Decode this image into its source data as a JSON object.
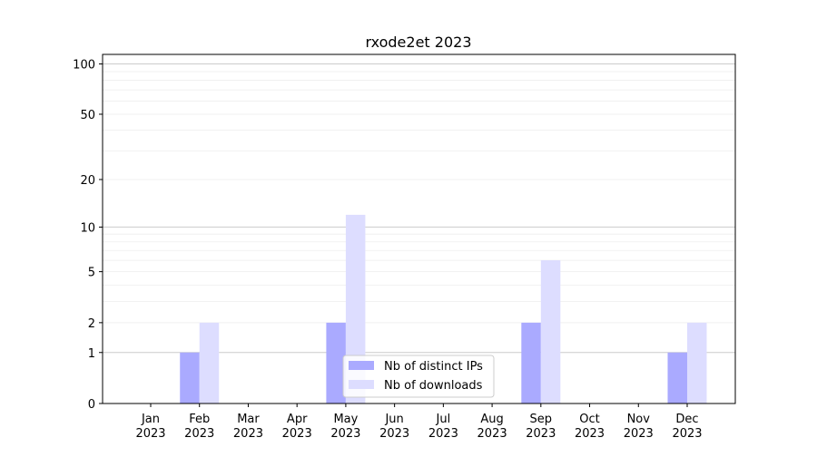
{
  "chart_data": {
    "type": "bar",
    "title": "rxode2et 2023",
    "xlabel": "",
    "ylabel": "",
    "yscale": "symlog",
    "ylim": [
      0,
      114
    ],
    "yticks": [
      0,
      1,
      2,
      5,
      10,
      20,
      50,
      100
    ],
    "grid": true,
    "legend_placement": "bottom-center",
    "categories": [
      "Jan\n2023",
      "Feb\n2023",
      "Mar\n2023",
      "Apr\n2023",
      "May\n2023",
      "Jun\n2023",
      "Jul\n2023",
      "Aug\n2023",
      "Sep\n2023",
      "Oct\n2023",
      "Nov\n2023",
      "Dec\n2023"
    ],
    "series": [
      {
        "name": "Nb of distinct IPs",
        "color": "#aaaaff",
        "values": [
          0,
          1,
          0,
          0,
          2,
          0,
          0,
          0,
          2,
          0,
          0,
          1
        ]
      },
      {
        "name": "Nb of downloads",
        "color": "#ddddff",
        "values": [
          0,
          2,
          0,
          0,
          12,
          0,
          0,
          0,
          6,
          0,
          0,
          2
        ]
      }
    ]
  }
}
